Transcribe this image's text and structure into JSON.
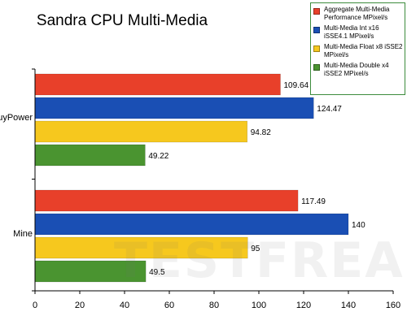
{
  "chart_data": {
    "type": "bar",
    "orientation": "horizontal",
    "title": "Sandra CPU Multi-Media",
    "categories": [
      "iBuyPower",
      "Mine"
    ],
    "series": [
      {
        "name": "Aggregate Multi-Media Performance MPixel/s",
        "values": [
          109.64,
          117.49
        ],
        "color": "#e8402a"
      },
      {
        "name": "Multi-Media Int x16 iSSE4.1 MPixel/s",
        "values": [
          124.47,
          140
        ],
        "color": "#1a4fb4"
      },
      {
        "name": "Multi-Media Float x8 iSSE2 MPixel/s",
        "values": [
          94.82,
          95
        ],
        "color": "#f6c81e"
      },
      {
        "name": "Multi-Media Double x4 iSSE2 MPixel/s",
        "values": [
          49.22,
          49.5
        ],
        "color": "#4a9430"
      }
    ],
    "data_labels": [
      [
        "109.64",
        "117.49"
      ],
      [
        "124.47",
        "140"
      ],
      [
        "94.82",
        "95"
      ],
      [
        "49.22",
        "49.5"
      ]
    ],
    "xlim": [
      0,
      160
    ],
    "xticks": [
      0,
      20,
      40,
      60,
      80,
      100,
      120,
      140,
      160
    ],
    "grid": false,
    "legend_position": "top-right"
  },
  "legend": {
    "items": [
      {
        "label": "Aggregate Multi-Media Performance MPixel/s",
        "color": "#e8402a"
      },
      {
        "label": "Multi-Media Int x16 iSSE4.1 MPixel/s",
        "color": "#1a4fb4"
      },
      {
        "label": "Multi-Media Float x8 iSSE2 MPixel/s",
        "color": "#f6c81e"
      },
      {
        "label": "Multi-Media Double x4 iSSE2 MPixel/s",
        "color": "#4a9430"
      }
    ]
  },
  "watermark": {
    "text": "TESTFREAKS"
  }
}
